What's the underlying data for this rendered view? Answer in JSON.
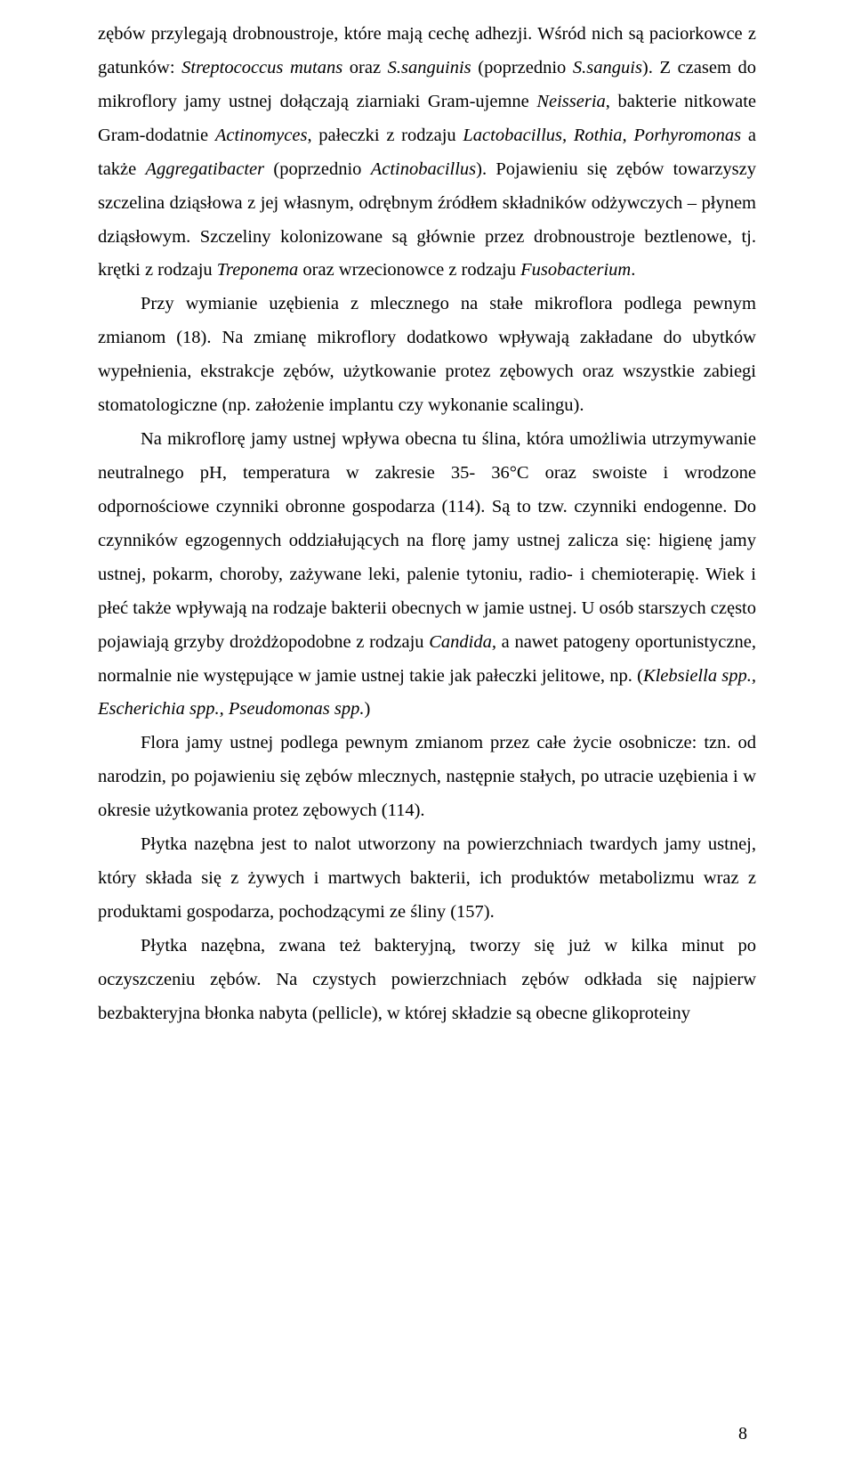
{
  "page": {
    "number": "8"
  },
  "paragraphs": {
    "p1_a": "zębów przylegają drobnoustroje, które mają cechę adhezji. Wśród nich są paciorkowce z gatunków: ",
    "p1_b": "Streptococcus mutans",
    "p1_c": " oraz ",
    "p1_d": "S.sanguinis",
    "p1_e": " (poprzednio ",
    "p1_f": "S.sanguis",
    "p1_g": "). Z czasem do mikroflory jamy ustnej dołączają ziarniaki Gram-ujemne ",
    "p1_h": "Neisseria",
    "p1_i": ", bakterie nitkowate Gram-dodatnie ",
    "p1_j": "Actinomyces",
    "p1_k": ", pałeczki z rodzaju ",
    "p1_l": "Lactobacillus, Rothia, Porhyromonas",
    "p1_m": " a także ",
    "p1_n": "Aggregatibacter",
    "p1_o": " (poprzednio ",
    "p1_p": "Actinobacillus",
    "p1_q": "). Pojawieniu się zębów towarzyszy szczelina dziąsłowa z jej własnym, odrębnym źródłem składników odżywczych – płynem dziąsłowym. Szczeliny kolonizowane są głównie przez drobnoustroje beztlenowe, tj. krętki z rodzaju ",
    "p1_r": "Treponema",
    "p1_s": " oraz wrzecionowce z rodzaju ",
    "p1_t": "Fusobacterium",
    "p1_u": ".",
    "p2": "Przy wymianie uzębienia z mlecznego na stałe mikroflora podlega pewnym zmianom (18). Na zmianę mikroflory dodatkowo wpływają zakładane do ubytków wypełnienia, ekstrakcje zębów, użytkowanie protez zębowych oraz wszystkie zabiegi stomatologiczne (np. założenie implantu czy wykonanie scalingu).",
    "p3_a": "Na mikroflorę jamy ustnej wpływa obecna tu ślina, która umożliwia utrzymywanie neutralnego pH, temperatura w zakresie 35- 36°C oraz swoiste i wrodzone odpornościowe czynniki obronne gospodarza (114). Są to tzw. czynniki endogenne. Do czynników egzogennych oddziałujących na florę jamy ustnej zalicza się: higienę jamy ustnej, pokarm, choroby, zażywane leki, palenie tytoniu, radio- i chemioterapię. Wiek i płeć także wpływają na rodzaje bakterii obecnych w jamie ustnej. U osób starszych często pojawiają grzyby drożdżopodobne z rodzaju ",
    "p3_b": "Candida,",
    "p3_c": " a nawet patogeny oportunistyczne, normalnie nie występujące w jamie ustnej takie jak pałeczki jelitowe, np. (",
    "p3_d": "Klebsiella spp., Escherichia spp., Pseudomonas spp.",
    "p3_e": ")",
    "p4": "Flora jamy ustnej podlega pewnym zmianom przez całe życie osobnicze: tzn. od narodzin, po pojawieniu się zębów mlecznych, następnie stałych, po utracie uzębienia i w okresie użytkowania protez zębowych (114).",
    "p5": "Płytka nazębna jest to nalot utworzony na powierzchniach twardych jamy ustnej, który składa się z żywych i martwych bakterii, ich produktów metabolizmu wraz z produktami gospodarza, pochodzącymi ze śliny (157).",
    "p6": " Płytka nazębna, zwana też bakteryjną, tworzy się już w kilka minut po oczyszczeniu zębów. Na czystych powierzchniach zębów odkłada się najpierw bezbakteryjna błonka nabyta (pellicle), w której składzie są obecne glikoproteiny"
  }
}
